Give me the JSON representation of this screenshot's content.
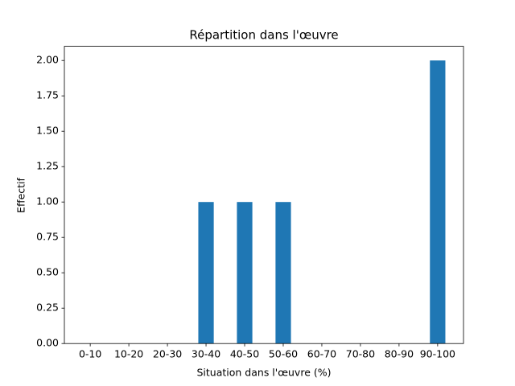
{
  "chart_data": {
    "type": "bar",
    "title": "Répartition dans l'œuvre",
    "x_label": "Situation dans l'œuvre (%)",
    "y_label": "Effectif",
    "categories": [
      "0-10",
      "10-20",
      "20-30",
      "30-40",
      "40-50",
      "50-60",
      "60-70",
      "70-80",
      "80-90",
      "90-100"
    ],
    "values": [
      0,
      0,
      0,
      1,
      1,
      1,
      0,
      0,
      0,
      2
    ],
    "color": "#1f77b4",
    "ylim": [
      0,
      2.1
    ],
    "yticks": [
      {
        "value": 0,
        "label": "0.00"
      },
      {
        "value": 0.25,
        "label": "0.25"
      },
      {
        "value": 0.5,
        "label": "0.50"
      },
      {
        "value": 0.75,
        "label": "0.75"
      },
      {
        "value": 1,
        "label": "1.00"
      },
      {
        "value": 1.25,
        "label": "1.25"
      },
      {
        "value": 1.5,
        "label": "1.50"
      },
      {
        "value": 1.75,
        "label": "1.75"
      },
      {
        "value": 2,
        "label": "2.00"
      }
    ],
    "grid": false
  }
}
